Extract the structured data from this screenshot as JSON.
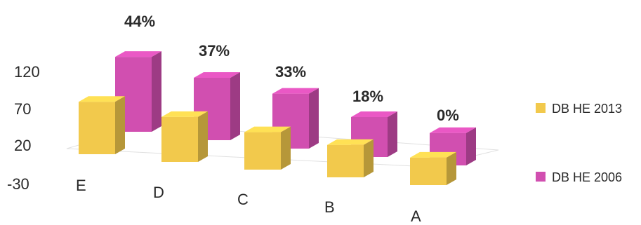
{
  "chart_data": {
    "type": "bar",
    "categories": [
      "E",
      "D",
      "C",
      "B",
      "A"
    ],
    "y_ticks": [
      "120",
      "70",
      "20",
      "-30"
    ],
    "ylim": [
      -30,
      120
    ],
    "grid": false,
    "legend_position": "right",
    "series": [
      {
        "name": "DB HE 2013",
        "color": "#f2c94c",
        "values": [
          75,
          60,
          45,
          35,
          25
        ]
      },
      {
        "name": "DB HE 2006",
        "color": "#d14fb0",
        "values": [
          120,
          95,
          80,
          50,
          35
        ],
        "data_labels": [
          "44%",
          "37%",
          "33%",
          "18%",
          "0%"
        ]
      }
    ]
  }
}
